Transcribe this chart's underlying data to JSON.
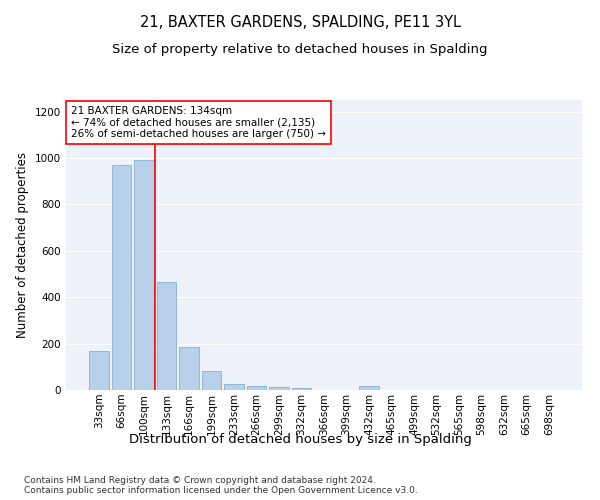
{
  "title": "21, BAXTER GARDENS, SPALDING, PE11 3YL",
  "subtitle": "Size of property relative to detached houses in Spalding",
  "xlabel": "Distribution of detached houses by size in Spalding",
  "ylabel": "Number of detached properties",
  "categories": [
    "33sqm",
    "66sqm",
    "100sqm",
    "133sqm",
    "166sqm",
    "199sqm",
    "233sqm",
    "266sqm",
    "299sqm",
    "332sqm",
    "366sqm",
    "399sqm",
    "432sqm",
    "465sqm",
    "499sqm",
    "532sqm",
    "565sqm",
    "598sqm",
    "632sqm",
    "665sqm",
    "698sqm"
  ],
  "values": [
    170,
    970,
    990,
    465,
    185,
    80,
    25,
    18,
    12,
    10,
    0,
    0,
    18,
    0,
    0,
    0,
    0,
    0,
    0,
    0,
    0
  ],
  "bar_color": "#b8d0ea",
  "bar_edge_color": "#8ab0d0",
  "vline_color": "red",
  "vline_index": 2.5,
  "annotation_title": "21 BAXTER GARDENS: 134sqm",
  "annotation_line1": "← 74% of detached houses are smaller (2,135)",
  "annotation_line2": "26% of semi-detached houses are larger (750) →",
  "annotation_box_facecolor": "white",
  "annotation_box_edgecolor": "red",
  "ylim": [
    0,
    1250
  ],
  "yticks": [
    0,
    200,
    400,
    600,
    800,
    1000,
    1200
  ],
  "footer_line1": "Contains HM Land Registry data © Crown copyright and database right 2024.",
  "footer_line2": "Contains public sector information licensed under the Open Government Licence v3.0.",
  "title_fontsize": 10.5,
  "subtitle_fontsize": 9.5,
  "xlabel_fontsize": 9.5,
  "ylabel_fontsize": 8.5,
  "tick_fontsize": 7.5,
  "annotation_fontsize": 7.5,
  "footer_fontsize": 6.5,
  "background_color": "#edf2f9"
}
